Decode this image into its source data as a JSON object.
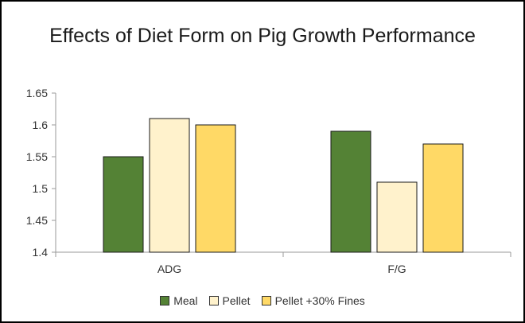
{
  "chart_data": {
    "type": "bar",
    "title": "Effects of Diet Form on Pig Growth Performance",
    "categories": [
      "ADG",
      "F/G"
    ],
    "series": [
      {
        "name": "Meal",
        "values": [
          1.55,
          1.59
        ],
        "color": "#548235"
      },
      {
        "name": "Pellet",
        "values": [
          1.61,
          1.51
        ],
        "color": "#FFF2CC"
      },
      {
        "name": "Pellet +30% Fines",
        "values": [
          1.6,
          1.57
        ],
        "color": "#FFD966"
      }
    ],
    "xlabel": "",
    "ylabel": "",
    "ylim": [
      1.4,
      1.65
    ],
    "yticks": [
      "1.4",
      "1.45",
      "1.5",
      "1.55",
      "1.6",
      "1.65"
    ],
    "grid": false,
    "legend_position": "bottom"
  }
}
